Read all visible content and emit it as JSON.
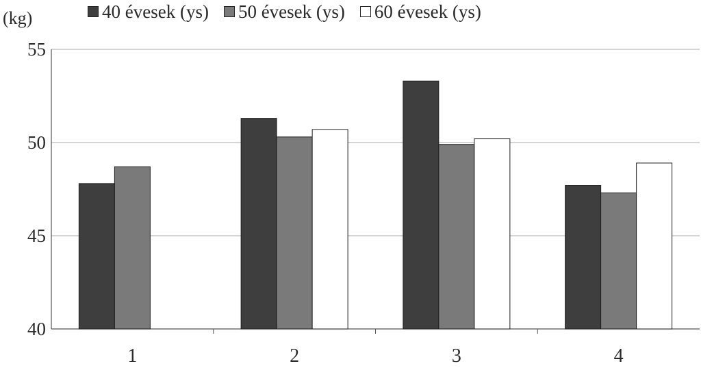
{
  "chart_data": {
    "type": "bar",
    "title": "",
    "xlabel": "",
    "ylabel": "(kg)",
    "categories": [
      "1",
      "2",
      "3",
      "4"
    ],
    "series": [
      {
        "name": "40 évesek (ys)",
        "color": "#3e3e3e",
        "values": [
          47.8,
          51.3,
          53.3,
          47.7
        ]
      },
      {
        "name": "50 évesek (ys)",
        "color": "#7a7a7a",
        "values": [
          48.7,
          50.3,
          49.9,
          47.3
        ]
      },
      {
        "name": "60 évesek (ys)",
        "color": "#ffffff",
        "values": [
          null,
          50.7,
          50.2,
          48.9
        ]
      }
    ],
    "ylim": [
      40,
      55
    ],
    "yticks": [
      "40",
      "45",
      "50",
      "55"
    ],
    "grid": true,
    "legend_position": "top"
  }
}
